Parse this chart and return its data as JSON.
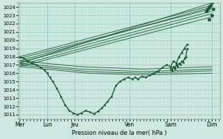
{
  "xlabel": "Pression niveau de la mer( hPa )",
  "bg_color": "#cce8e0",
  "grid_major_color": "#99ccbb",
  "grid_minor_color": "#b8ddd4",
  "line_color": "#1a5530",
  "ylim": [
    1010.5,
    1024.5
  ],
  "yticks": [
    1011,
    1012,
    1013,
    1014,
    1015,
    1016,
    1017,
    1018,
    1019,
    1020,
    1021,
    1022,
    1023,
    1024
  ],
  "day_labels": [
    "Mer",
    "Lun",
    "Jeu",
    "Ven",
    "Sam",
    "Dim"
  ],
  "day_x": [
    0.0,
    1.0,
    2.0,
    4.0,
    5.5,
    7.0
  ],
  "xlim": [
    -0.05,
    7.3
  ],
  "ensemble_high": [
    {
      "x": [
        0.0,
        7.0
      ],
      "y": [
        1018.0,
        1024.2
      ]
    },
    {
      "x": [
        0.0,
        7.0
      ],
      "y": [
        1017.8,
        1023.8
      ]
    },
    {
      "x": [
        0.0,
        7.0
      ],
      "y": [
        1017.5,
        1024.0
      ]
    },
    {
      "x": [
        0.0,
        7.0
      ],
      "y": [
        1017.3,
        1023.5
      ]
    },
    {
      "x": [
        0.0,
        7.0
      ],
      "y": [
        1017.0,
        1023.2
      ]
    },
    {
      "x": [
        0.0,
        7.0
      ],
      "y": [
        1016.8,
        1022.8
      ]
    },
    {
      "x": [
        0.0,
        7.0
      ],
      "y": [
        1017.2,
        1024.5
      ]
    }
  ],
  "ensemble_low": [
    {
      "x": [
        0.0,
        2.2,
        4.5,
        7.0
      ],
      "y": [
        1017.5,
        1016.8,
        1016.5,
        1016.8
      ]
    },
    {
      "x": [
        0.0,
        2.2,
        4.5,
        7.0
      ],
      "y": [
        1017.2,
        1016.5,
        1016.2,
        1016.5
      ]
    },
    {
      "x": [
        0.0,
        2.5,
        4.5,
        7.0
      ],
      "y": [
        1017.0,
        1016.2,
        1016.0,
        1016.3
      ]
    },
    {
      "x": [
        0.0,
        2.5,
        4.5,
        7.0
      ],
      "y": [
        1016.8,
        1016.0,
        1015.8,
        1016.0
      ]
    }
  ],
  "main_line_x": [
    0.0,
    0.15,
    0.3,
    0.45,
    0.6,
    0.75,
    0.9,
    1.0,
    1.1,
    1.2,
    1.35,
    1.5,
    1.65,
    1.8,
    1.95,
    2.1,
    2.25,
    2.4,
    2.55,
    2.7,
    2.85,
    3.0,
    3.1,
    3.2,
    3.35,
    3.5,
    3.65,
    3.8,
    3.95,
    4.1,
    4.2,
    4.3,
    4.45,
    4.6,
    4.75,
    4.9,
    5.05,
    5.2,
    5.35,
    5.5,
    5.6,
    5.7,
    5.8,
    5.9,
    6.0,
    6.1
  ],
  "main_line_y": [
    1018.0,
    1017.8,
    1017.5,
    1017.2,
    1017.0,
    1016.7,
    1016.4,
    1016.0,
    1015.5,
    1015.0,
    1014.2,
    1013.2,
    1012.2,
    1011.5,
    1011.2,
    1011.0,
    1011.2,
    1011.5,
    1011.3,
    1011.1,
    1011.4,
    1011.8,
    1012.2,
    1012.6,
    1013.2,
    1014.5,
    1015.0,
    1015.3,
    1015.5,
    1015.3,
    1015.5,
    1015.3,
    1015.6,
    1015.5,
    1015.8,
    1016.0,
    1016.3,
    1016.7,
    1017.0,
    1016.8,
    1017.5,
    1017.2,
    1018.0,
    1018.5,
    1019.0,
    1019.5
  ],
  "sam_line_x": [
    5.5,
    5.55,
    5.6,
    5.65,
    5.7,
    5.75,
    5.8,
    5.85,
    5.9,
    5.95,
    6.0,
    6.05,
    6.1
  ],
  "sam_line_y": [
    1016.5,
    1016.3,
    1016.8,
    1016.5,
    1017.0,
    1016.8,
    1017.2,
    1017.0,
    1017.5,
    1017.3,
    1017.8,
    1018.0,
    1019.0
  ],
  "dim_stars_x": [
    6.8,
    6.85,
    6.9,
    6.95,
    7.0,
    7.05,
    7.0,
    6.9
  ],
  "dim_stars_y": [
    1023.5,
    1023.8,
    1024.0,
    1024.2,
    1024.5,
    1023.8,
    1023.0,
    1022.5
  ]
}
